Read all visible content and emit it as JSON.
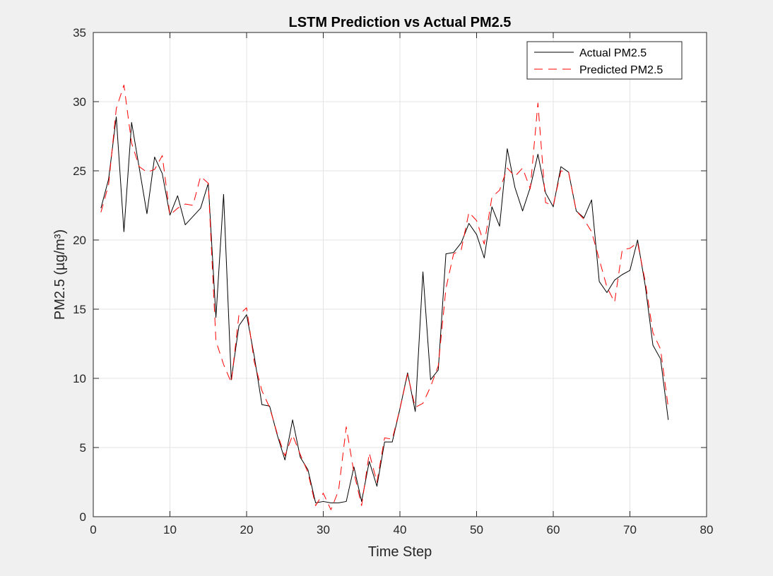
{
  "chart_data": {
    "type": "line",
    "title": "LSTM Prediction vs Actual PM2.5",
    "xlabel": "Time Step",
    "ylabel": "PM2.5 (µg/m³)",
    "xlim": [
      0,
      80
    ],
    "ylim": [
      0,
      35
    ],
    "xticks": [
      0,
      10,
      20,
      30,
      40,
      50,
      60,
      70,
      80
    ],
    "yticks": [
      0,
      5,
      10,
      15,
      20,
      25,
      30,
      35
    ],
    "grid": true,
    "legend_position": "top-right",
    "x": [
      1,
      2,
      3,
      4,
      5,
      6,
      7,
      8,
      9,
      10,
      11,
      12,
      13,
      14,
      15,
      16,
      17,
      18,
      19,
      20,
      21,
      22,
      23,
      24,
      25,
      26,
      27,
      28,
      29,
      30,
      31,
      32,
      33,
      34,
      35,
      36,
      37,
      38,
      39,
      40,
      41,
      42,
      43,
      44,
      45,
      46,
      47,
      48,
      49,
      50,
      51,
      52,
      53,
      54,
      55,
      56,
      57,
      58,
      59,
      60,
      61,
      62,
      63,
      64,
      65,
      66,
      67,
      68,
      69,
      70,
      71,
      72,
      73,
      74,
      75
    ],
    "series": [
      {
        "name": "Actual PM2.5",
        "color": "#000000",
        "style": "solid",
        "values": [
          22.3,
          24.4,
          28.9,
          20.6,
          28.5,
          25.2,
          21.9,
          26.0,
          24.8,
          21.8,
          23.2,
          21.1,
          21.7,
          22.3,
          24.1,
          14.4,
          23.3,
          9.9,
          13.8,
          14.6,
          11.6,
          8.1,
          8.0,
          5.9,
          4.1,
          7.0,
          4.3,
          3.4,
          1.0,
          1.1,
          1.0,
          1.0,
          1.1,
          3.6,
          1.1,
          4.0,
          2.2,
          5.4,
          5.4,
          7.8,
          10.4,
          7.6,
          17.7,
          9.9,
          10.6,
          19.0,
          19.1,
          19.8,
          21.2,
          20.4,
          18.7,
          22.4,
          21.0,
          26.6,
          23.8,
          22.1,
          23.8,
          26.2,
          23.4,
          22.4,
          25.3,
          24.9,
          22.1,
          21.6,
          22.9,
          17.0,
          16.2,
          17.1,
          17.5,
          17.8,
          20.0,
          16.7,
          12.4,
          11.4,
          7.0
        ]
      },
      {
        "name": "Predicted PM2.5",
        "color": "#ff0000",
        "style": "dashed",
        "values": [
          22.0,
          24.0,
          29.5,
          31.2,
          27.0,
          25.3,
          24.9,
          25.1,
          26.1,
          21.8,
          22.3,
          22.6,
          22.5,
          24.6,
          24.1,
          12.7,
          11.0,
          9.7,
          14.6,
          15.1,
          11.2,
          9.1,
          7.9,
          6.0,
          4.4,
          5.9,
          4.5,
          3.2,
          0.8,
          1.7,
          0.5,
          1.9,
          6.5,
          3.2,
          0.8,
          4.6,
          2.5,
          5.7,
          5.6,
          7.8,
          10.3,
          7.9,
          8.2,
          9.4,
          10.9,
          16.5,
          19.0,
          19.3,
          22.0,
          21.4,
          19.7,
          23.1,
          23.6,
          25.2,
          24.6,
          25.2,
          23.7,
          29.9,
          22.7,
          22.5,
          25.0,
          24.9,
          22.1,
          21.5,
          20.6,
          18.6,
          16.6,
          15.5,
          19.3,
          19.4,
          19.8,
          17.0,
          13.3,
          12.1,
          7.9
        ]
      }
    ]
  }
}
